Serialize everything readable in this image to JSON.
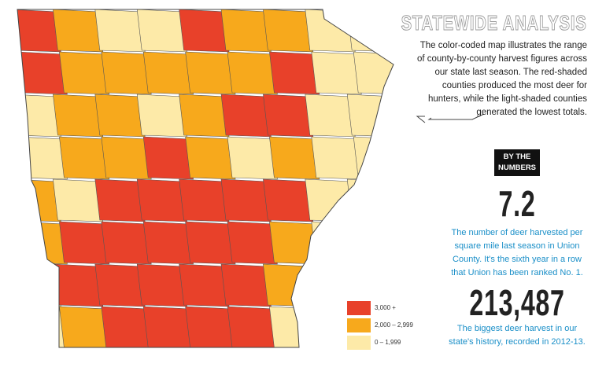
{
  "header": {
    "title": "STATEWIDE ANALYSIS",
    "description": "The color-coded map illustrates the range of county-by-county harvest figures across our state last season. The red-shaded counties produced the most deer for hunters, while the light-shaded counties generated the lowest totals."
  },
  "stats": {
    "badge": "BY THE NUMBERS",
    "items": [
      {
        "value": "7.2",
        "description": "The number of deer harvested per square mile last season in Union County. It's the sixth year in a row that Union has been ranked No. 1."
      },
      {
        "value": "213,487",
        "description": "The biggest deer harvest in our state's history, recorded in 2012-13."
      }
    ]
  },
  "legend": {
    "items": [
      {
        "label": "3,000 +",
        "color": "#e8412a"
      },
      {
        "label": "2,000 – 2,999",
        "color": "#f7a91c"
      },
      {
        "label": "0 – 1,999",
        "color": "#fdeaa8"
      }
    ]
  }
}
